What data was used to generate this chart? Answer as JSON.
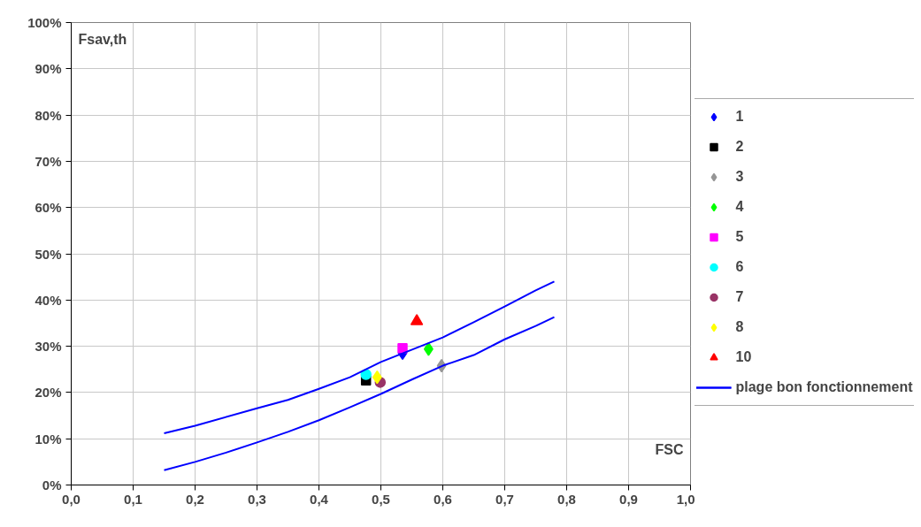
{
  "chart_data": {
    "type": "scatter",
    "xlabel": "FSC",
    "ylabel": "Fsav,th",
    "xlim": [
      0,
      1
    ],
    "ylim": [
      0,
      100
    ],
    "xticks": [
      {
        "value": 0,
        "label": "0,0"
      },
      {
        "value": 0.1,
        "label": "0,1"
      },
      {
        "value": 0.2,
        "label": "0,2"
      },
      {
        "value": 0.3,
        "label": "0,3"
      },
      {
        "value": 0.4,
        "label": "0,4"
      },
      {
        "value": 0.5,
        "label": "0,5"
      },
      {
        "value": 0.6,
        "label": "0,6"
      },
      {
        "value": 0.7,
        "label": "0,7"
      },
      {
        "value": 0.8,
        "label": "0,8"
      },
      {
        "value": 0.9,
        "label": "0,9"
      },
      {
        "value": 1,
        "label": "1,0"
      }
    ],
    "yticks": [
      {
        "value": 0,
        "label": "0%"
      },
      {
        "value": 10,
        "label": "10%"
      },
      {
        "value": 20,
        "label": "20%"
      },
      {
        "value": 30,
        "label": "30%"
      },
      {
        "value": 40,
        "label": "40%"
      },
      {
        "value": 50,
        "label": "50%"
      },
      {
        "value": 60,
        "label": "60%"
      },
      {
        "value": 70,
        "label": "70%"
      },
      {
        "value": 80,
        "label": "80%"
      },
      {
        "value": 90,
        "label": "90%"
      },
      {
        "value": 100,
        "label": "100%"
      }
    ],
    "grid": true,
    "legend": "right",
    "series": [
      {
        "name": "1",
        "color": "#0000ff",
        "marker": "diamond",
        "x": [
          0.535
        ],
        "values": [
          28.5
        ]
      },
      {
        "name": "2",
        "color": "#000000",
        "marker": "square",
        "x": [
          0.476
        ],
        "values": [
          22.6
        ]
      },
      {
        "name": "3",
        "color": "#969696",
        "marker": "diamond",
        "x": [
          0.598
        ],
        "values": [
          25.8
        ]
      },
      {
        "name": "4",
        "color": "#00ff00",
        "marker": "diamond",
        "x": [
          0.577
        ],
        "values": [
          29.4
        ]
      },
      {
        "name": "5",
        "color": "#ff00ff",
        "marker": "square",
        "x": [
          0.535
        ],
        "values": [
          29.6
        ]
      },
      {
        "name": "6",
        "color": "#00ffff",
        "marker": "circle",
        "x": [
          0.476
        ],
        "values": [
          23.9
        ]
      },
      {
        "name": "7",
        "color": "#993366",
        "marker": "circle",
        "x": [
          0.499
        ],
        "values": [
          22.2
        ]
      },
      {
        "name": "8",
        "color": "#ffff00",
        "marker": "diamond",
        "x": [
          0.494
        ],
        "values": [
          23.3
        ]
      },
      {
        "name": "10",
        "color": "#ff0000",
        "marker": "triangle",
        "x": [
          0.558
        ],
        "values": [
          35.4
        ]
      },
      {
        "name": "plage bon fonctionnement",
        "type": "line",
        "color": "#0000ff",
        "marker": "none",
        "x": [
          0.15,
          0.2,
          0.3,
          0.35,
          0.4,
          0.45,
          0.5,
          0.6,
          0.65,
          0.7,
          0.75,
          0.78
        ],
        "values": [
          11.2,
          12.8,
          16.6,
          18.4,
          20.8,
          23.3,
          26.6,
          31.9,
          35.2,
          38.6,
          42.1,
          44.0
        ]
      },
      {
        "type": "line",
        "color": "#0000ff",
        "marker": "none",
        "x": [
          0.15,
          0.2,
          0.25,
          0.3,
          0.35,
          0.4,
          0.45,
          0.5,
          0.55,
          0.6,
          0.65,
          0.7,
          0.75,
          0.78
        ],
        "values": [
          3.2,
          5.0,
          7.0,
          9.2,
          11.5,
          14.0,
          16.8,
          19.7,
          22.8,
          25.8,
          28.1,
          31.5,
          34.4,
          36.3
        ]
      }
    ]
  }
}
